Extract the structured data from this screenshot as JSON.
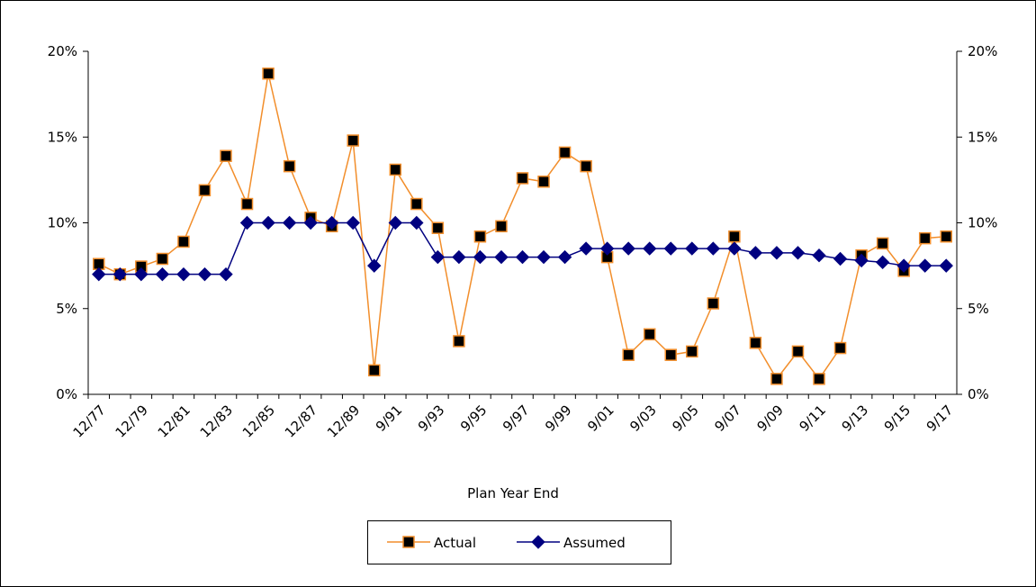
{
  "chart_data": {
    "type": "line",
    "x_label": "Plan Year End",
    "categories": [
      "12/77",
      null,
      "12/79",
      null,
      "12/81",
      null,
      "12/83",
      null,
      "12/85",
      null,
      "12/87",
      null,
      "12/89",
      null,
      "9/91",
      null,
      "9/93",
      null,
      "9/95",
      null,
      "9/97",
      null,
      "9/99",
      null,
      "9/01",
      null,
      "9/03",
      null,
      "9/05",
      null,
      "9/07",
      null,
      "9/09",
      null,
      "9/11",
      null,
      "9/13",
      null,
      "9/15",
      null,
      "9/17"
    ],
    "series": [
      {
        "name": "Actual",
        "color": "#f28e2b",
        "marker": "square",
        "marker_color": "#000000",
        "values": [
          7.6,
          7.0,
          7.45,
          7.9,
          8.9,
          11.9,
          13.9,
          11.1,
          18.7,
          13.3,
          10.3,
          9.8,
          14.8,
          1.4,
          13.1,
          11.1,
          9.7,
          3.1,
          9.2,
          9.8,
          12.6,
          12.4,
          14.1,
          13.3,
          8.0,
          2.3,
          3.5,
          2.3,
          2.5,
          5.3,
          9.2,
          3.0,
          0.9,
          2.5,
          0.9,
          2.7,
          8.1,
          8.8,
          7.2,
          9.1,
          9.2
        ]
      },
      {
        "name": "Assumed",
        "color": "#000080",
        "marker": "diamond",
        "marker_color": "#000080",
        "values": [
          7.0,
          7.0,
          7.0,
          7.0,
          7.0,
          7.0,
          7.0,
          10.0,
          10.0,
          10.0,
          10.0,
          10.0,
          10.0,
          7.5,
          10.0,
          10.0,
          8.0,
          8.0,
          8.0,
          8.0,
          8.0,
          8.0,
          8.0,
          8.5,
          8.5,
          8.5,
          8.5,
          8.5,
          8.5,
          8.5,
          8.5,
          8.25,
          8.25,
          8.25,
          8.1,
          7.9,
          7.8,
          7.7,
          7.5,
          7.5,
          7.5
        ]
      }
    ],
    "ylim": [
      0,
      20
    ],
    "yticks": [
      {
        "value": 0,
        "label": "0%"
      },
      {
        "value": 5,
        "label": "5%"
      },
      {
        "value": 10,
        "label": "10%"
      },
      {
        "value": 15,
        "label": "15%"
      },
      {
        "value": 20,
        "label": "20%"
      }
    ],
    "y2lim": [
      0,
      20
    ],
    "y2ticks": [
      {
        "value": 0,
        "label": "0%"
      },
      {
        "value": 5,
        "label": "5%"
      },
      {
        "value": 10,
        "label": "10%"
      },
      {
        "value": 15,
        "label": "15%"
      },
      {
        "value": 20,
        "label": "20%"
      }
    ],
    "grid": false,
    "legend": "bottom"
  }
}
